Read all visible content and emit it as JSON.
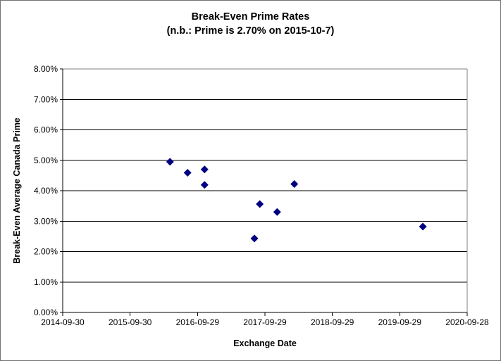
{
  "window": {
    "background": "#ffffff",
    "border_color": "#737373"
  },
  "chart_data": {
    "type": "scatter",
    "title": "Break-Even Prime Rates",
    "subtitle": "(n.b.: Prime is 2.70% on 2015-10-7)",
    "xlabel": "Exchange Date",
    "ylabel": "Break-Even Average Canada Prime",
    "legend": "none",
    "grid": "horizontal-major",
    "x_axis": {
      "min": "2014-09-30",
      "max": "2020-09-28",
      "tick_labels": [
        "2014-09-30",
        "2015-09-30",
        "2016-09-29",
        "2017-09-29",
        "2018-09-29",
        "2019-09-29",
        "2020-09-28"
      ]
    },
    "y_axis": {
      "min": 0,
      "max": 8,
      "tick_step_pct": 1,
      "tick_labels": [
        "0.00%",
        "1.00%",
        "2.00%",
        "3.00%",
        "4.00%",
        "5.00%",
        "6.00%",
        "7.00%",
        "8.00%"
      ]
    },
    "marker": {
      "shape": "diamond",
      "color": "#000080",
      "size": 11
    },
    "colors": {
      "gridline": "#000000",
      "plot_border": "#808080",
      "axis": "#000000",
      "text": "#000000"
    },
    "points": [
      {
        "date": "2016-05-03",
        "value_pct": 4.95
      },
      {
        "date": "2016-08-06",
        "value_pct": 4.59
      },
      {
        "date": "2016-11-06",
        "value_pct": 4.7
      },
      {
        "date": "2016-11-06",
        "value_pct": 4.19
      },
      {
        "date": "2017-08-03",
        "value_pct": 2.43
      },
      {
        "date": "2017-09-01",
        "value_pct": 3.56
      },
      {
        "date": "2017-12-04",
        "value_pct": 3.3
      },
      {
        "date": "2018-03-07",
        "value_pct": 4.22
      },
      {
        "date": "2020-02-01",
        "value_pct": 2.82
      }
    ]
  }
}
